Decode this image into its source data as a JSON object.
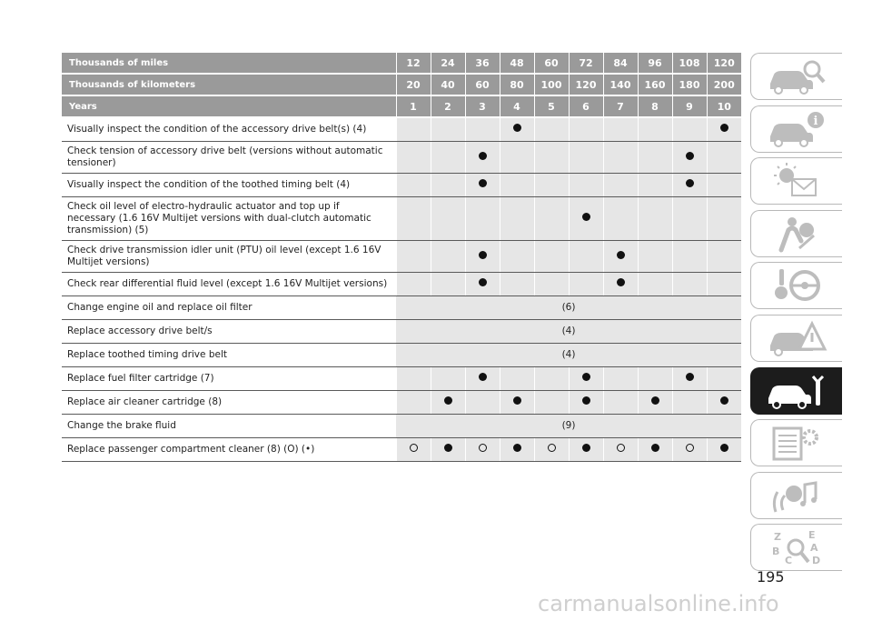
{
  "header_rows": [
    {
      "label": "Thousands of miles",
      "values": [
        "12",
        "24",
        "36",
        "48",
        "60",
        "72",
        "84",
        "96",
        "108",
        "120"
      ]
    },
    {
      "label": "Thousands of kilometers",
      "values": [
        "20",
        "40",
        "60",
        "80",
        "100",
        "120",
        "140",
        "160",
        "180",
        "200"
      ]
    },
    {
      "label": "Years",
      "values": [
        "1",
        "2",
        "3",
        "4",
        "5",
        "6",
        "7",
        "8",
        "9",
        "10"
      ]
    }
  ],
  "rows": [
    {
      "task": "Visually inspect the condition of the accessory drive belt(s) (4)",
      "marks": [
        "",
        "",
        "",
        "●",
        "",
        "",
        "",
        "",
        "",
        "●"
      ]
    },
    {
      "task": "Check tension of accessory drive belt (versions without automatic tensioner)",
      "marks": [
        "",
        "",
        "●",
        "",
        "",
        "",
        "",
        "",
        "●",
        ""
      ]
    },
    {
      "task": "Visually inspect the condition of the toothed timing belt (4)",
      "marks": [
        "",
        "",
        "●",
        "",
        "",
        "",
        "",
        "",
        "●",
        ""
      ]
    },
    {
      "task": "Check oil level of electro-hydraulic actuator and top up if necessary (1.6 16V Multijet versions with dual-clutch automatic transmission) (5)",
      "marks": [
        "",
        "",
        "",
        "",
        "",
        "●",
        "",
        "",
        "",
        ""
      ]
    },
    {
      "task": "Check drive transmission idler unit (PTU) oil level (except 1.6 16V Multijet versions)",
      "marks": [
        "",
        "",
        "●",
        "",
        "",
        "",
        "●",
        "",
        "",
        ""
      ]
    },
    {
      "task": "Check rear differential fluid level (except 1.6 16V Multijet versions)",
      "marks": [
        "",
        "",
        "●",
        "",
        "",
        "",
        "●",
        "",
        "",
        ""
      ]
    },
    {
      "task": "Change engine oil and replace oil filter",
      "span": "(6)"
    },
    {
      "task": "Replace accessory drive belt/s",
      "span": "(4)"
    },
    {
      "task": "Replace toothed timing drive belt",
      "span": "(4)"
    },
    {
      "task": "Replace fuel filter cartridge (7)",
      "marks": [
        "",
        "",
        "●",
        "",
        "",
        "●",
        "",
        "",
        "●",
        ""
      ]
    },
    {
      "task": "Replace air cleaner cartridge (8)",
      "marks": [
        "",
        "●",
        "",
        "●",
        "",
        "●",
        "",
        "●",
        "",
        "●"
      ]
    },
    {
      "task": "Change the brake fluid",
      "span": "(9)"
    },
    {
      "task": "Replace passenger compartment cleaner (8) (O) (•)",
      "marks": [
        "○",
        "●",
        "○",
        "●",
        "○",
        "●",
        "○",
        "●",
        "○",
        "●"
      ]
    }
  ],
  "sidebar_tabs": [
    {
      "icon": "car-search-icon",
      "active": false
    },
    {
      "icon": "car-info-icon",
      "active": false
    },
    {
      "icon": "warning-light-message-icon",
      "active": false
    },
    {
      "icon": "airbag-person-icon",
      "active": false
    },
    {
      "icon": "steering-key-icon",
      "active": false
    },
    {
      "icon": "car-warning-triangle-icon",
      "active": false
    },
    {
      "icon": "car-wrench-icon",
      "active": true
    },
    {
      "icon": "specs-gear-icon",
      "active": false
    },
    {
      "icon": "media-nav-icon",
      "active": false
    },
    {
      "icon": "index-alphabet-icon",
      "active": false
    }
  ],
  "page_number": "195",
  "watermark": "carmanualsonline.info",
  "colors": {
    "header_bg": "#9a9a9a",
    "cell_bg": "#e6e6e6",
    "active_tab": "#1c1c1c"
  }
}
